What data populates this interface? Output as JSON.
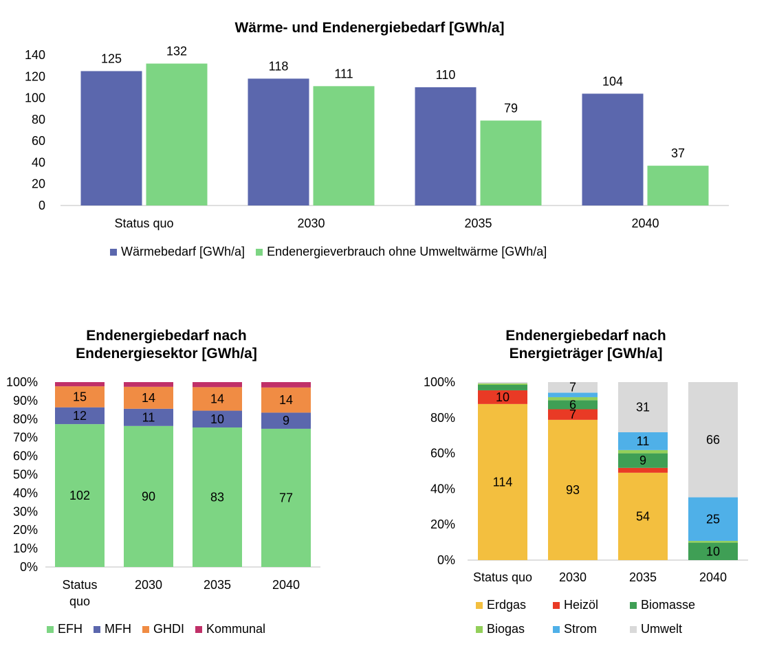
{
  "chart_data": [
    {
      "type": "bar",
      "title": "Wärme- und Endenergiebedarf [GWh/a]",
      "categories": [
        "Status quo",
        "2030",
        "2035",
        "2040"
      ],
      "ylim": [
        0,
        140
      ],
      "yticks": [
        0,
        20,
        40,
        60,
        80,
        100,
        120,
        140
      ],
      "grid": false,
      "legend": "bottom",
      "series": [
        {
          "name": "Wärmebedarf [GWh/a]",
          "color": "#5b67ad",
          "values": [
            125,
            118,
            110,
            104
          ]
        },
        {
          "name": "Endenergieverbrauch ohne Umweltwärme [GWh/a]",
          "color": "#7dd583",
          "values": [
            132,
            111,
            79,
            37
          ]
        }
      ]
    },
    {
      "type": "bar",
      "stacked": "percent",
      "title_lines": [
        "Endenergiebedarf nach",
        "Endenergiesektor [GWh/a]"
      ],
      "categories": [
        "Status quo",
        "2030",
        "2035",
        "2040"
      ],
      "category_lines": [
        [
          "Status",
          "quo"
        ],
        [
          "2030"
        ],
        [
          "2035"
        ],
        [
          "2040"
        ]
      ],
      "ylim": [
        0,
        100
      ],
      "yticks": [
        "0%",
        "10%",
        "20%",
        "30%",
        "40%",
        "50%",
        "60%",
        "70%",
        "80%",
        "90%",
        "100%"
      ],
      "legend": "bottom",
      "series": [
        {
          "name": "EFH",
          "color": "#7dd583",
          "values": [
            102,
            90,
            83,
            77
          ]
        },
        {
          "name": "MFH",
          "color": "#5b67ad",
          "values": [
            12,
            11,
            10,
            9
          ]
        },
        {
          "name": "GHDI",
          "color": "#f08c44",
          "values": [
            15,
            14,
            14,
            14
          ]
        },
        {
          "name": "Kommunal",
          "color": "#c03068",
          "values": [
            3,
            3,
            3,
            3
          ]
        }
      ],
      "labeled_series": [
        "EFH",
        "MFH",
        "GHDI"
      ]
    },
    {
      "type": "bar",
      "stacked": "percent",
      "title_lines": [
        "Endenergiebedarf nach",
        "Energieträger [GWh/a]"
      ],
      "categories": [
        "Status quo",
        "2030",
        "2035",
        "2040"
      ],
      "ylim": [
        0,
        100
      ],
      "yticks": [
        "0%",
        "20%",
        "40%",
        "60%",
        "80%",
        "100%"
      ],
      "legend": "bottom",
      "series": [
        {
          "name": "Erdgas",
          "color": "#f3bf3f",
          "values": [
            114,
            93,
            54,
            0
          ],
          "labels": [
            "114",
            "93",
            "54",
            ""
          ]
        },
        {
          "name": "Heizöl",
          "color": "#e93a25",
          "values": [
            10,
            7,
            3,
            0
          ],
          "labels": [
            "10",
            "7",
            "",
            ""
          ]
        },
        {
          "name": "Biomasse",
          "color": "#3f9f55",
          "values": [
            4,
            6,
            9,
            10
          ],
          "labels": [
            "",
            "6",
            "9",
            "10"
          ]
        },
        {
          "name": "Biogas",
          "color": "#93cf5a",
          "values": [
            1,
            2,
            2,
            1
          ],
          "labels": [
            "",
            "",
            "",
            ""
          ]
        },
        {
          "name": "Strom",
          "color": "#4fb0e8",
          "values": [
            0,
            3,
            11,
            25
          ],
          "labels": [
            "",
            "",
            "11",
            "25"
          ]
        },
        {
          "name": "Umwelt",
          "color": "#d9d9d9",
          "values": [
            1,
            7,
            31,
            66
          ],
          "labels": [
            "",
            "7",
            "31",
            "66"
          ]
        }
      ]
    }
  ]
}
